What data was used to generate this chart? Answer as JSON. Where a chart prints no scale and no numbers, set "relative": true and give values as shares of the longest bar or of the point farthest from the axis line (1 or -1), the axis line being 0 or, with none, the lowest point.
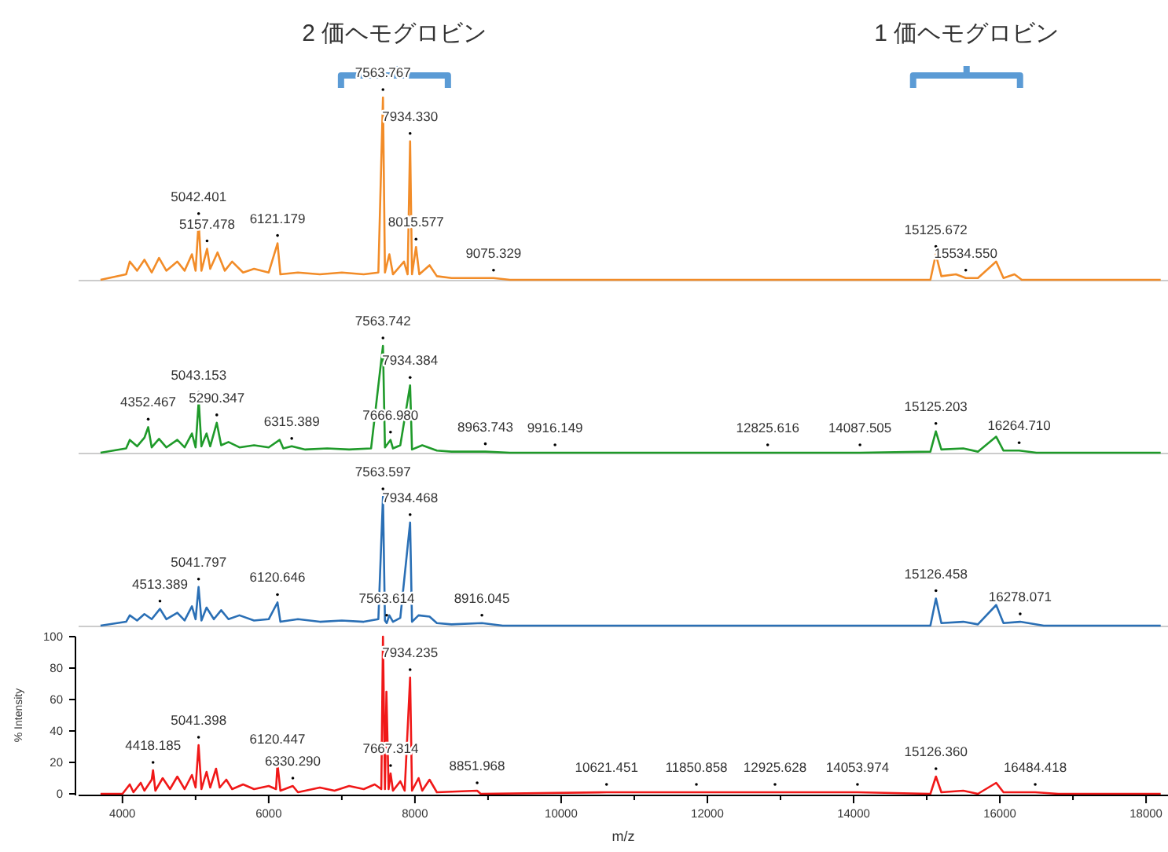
{
  "chart_data": [
    {
      "type": "line",
      "relative": true,
      "tick_labels": false,
      "xlim": [
        3400,
        18300
      ],
      "series": [
        {
          "color": "#f28c28",
          "x": [
            3700,
            4050,
            4100,
            4200,
            4300,
            4400,
            4500,
            4600,
            4750,
            4850,
            4950,
            5000,
            5042,
            5080,
            5157,
            5200,
            5300,
            5400,
            5500,
            5650,
            5800,
            6000,
            6121,
            6160,
            6400,
            6700,
            7000,
            7300,
            7500,
            7563,
            7590,
            7650,
            7700,
            7850,
            7900,
            7934,
            7960,
            8015,
            8060,
            8200,
            8300,
            8500,
            9075,
            9300,
            15050,
            15125,
            15200,
            15400,
            15534,
            15700,
            15950,
            16050,
            16200,
            16300,
            18200
          ],
          "values": [
            0,
            0.03,
            0.1,
            0.05,
            0.11,
            0.04,
            0.12,
            0.05,
            0.1,
            0.05,
            0.14,
            0.05,
            0.32,
            0.05,
            0.17,
            0.06,
            0.15,
            0.05,
            0.1,
            0.04,
            0.06,
            0.04,
            0.2,
            0.03,
            0.04,
            0.03,
            0.04,
            0.03,
            0.04,
            1,
            0.04,
            0.14,
            0.03,
            0.1,
            0.03,
            0.76,
            0.03,
            0.18,
            0.03,
            0.08,
            0.02,
            0.01,
            0.01,
            0,
            0,
            0.14,
            0.02,
            0.03,
            0.01,
            0.01,
            0.1,
            0.01,
            0.03,
            0,
            0
          ]
        }
      ],
      "annotations": [
        {
          "text": "2 価ヘモグロビン",
          "x": 7720
        },
        {
          "text": "1 価ヘモグロビン",
          "x": 15545
        },
        {
          "text": "7563.767",
          "x": 7563,
          "y": 1
        },
        {
          "text": "7934.330",
          "x": 7934,
          "y": 0.76
        },
        {
          "text": "5042.401",
          "x": 5042,
          "y": 0.32
        },
        {
          "text": "5157.478",
          "x": 5157,
          "y": 0.17
        },
        {
          "text": "6121.179",
          "x": 6121,
          "y": 0.2
        },
        {
          "text": "8015.577",
          "x": 8015,
          "y": 0.18
        },
        {
          "text": "9075.329",
          "x": 9075,
          "y": 0.01
        },
        {
          "text": "15125.672",
          "x": 15125,
          "y": 0.14
        },
        {
          "text": "15534.550",
          "x": 15534,
          "y": 0.01
        }
      ]
    },
    {
      "type": "line",
      "relative": true,
      "tick_labels": false,
      "xlim": [
        3400,
        18300
      ],
      "series": [
        {
          "color": "#1f9a2a",
          "x": [
            3700,
            4050,
            4100,
            4200,
            4300,
            4352,
            4400,
            4500,
            4600,
            4750,
            4850,
            4950,
            5000,
            5043,
            5080,
            5150,
            5200,
            5290,
            5350,
            5450,
            5600,
            5800,
            6000,
            6150,
            6200,
            6315,
            6500,
            6800,
            7100,
            7400,
            7563,
            7590,
            7666,
            7700,
            7800,
            7934,
            7960,
            8100,
            8300,
            8500,
            8963,
            9300,
            9916,
            12825,
            14087,
            15050,
            15125,
            15200,
            15500,
            15700,
            15950,
            16050,
            16264,
            16500,
            18200
          ],
          "values": [
            0,
            0.04,
            0.12,
            0.06,
            0.14,
            0.24,
            0.05,
            0.13,
            0.05,
            0.12,
            0.05,
            0.18,
            0.05,
            0.49,
            0.06,
            0.18,
            0.06,
            0.28,
            0.07,
            0.1,
            0.05,
            0.07,
            0.05,
            0.12,
            0.04,
            0.06,
            0.03,
            0.04,
            0.03,
            0.04,
            1,
            0.05,
            0.12,
            0.04,
            0.07,
            0.63,
            0.03,
            0.07,
            0.02,
            0.01,
            0.01,
            0,
            0,
            0,
            0,
            0.01,
            0.2,
            0.03,
            0.04,
            0.01,
            0.15,
            0.02,
            0.02,
            0,
            0
          ]
        }
      ],
      "annotations": [
        {
          "text": "7563.742",
          "x": 7563,
          "y": 1
        },
        {
          "text": "7934.384",
          "x": 7934,
          "y": 0.63
        },
        {
          "text": "5043.153",
          "x": 5043,
          "y": 0.49
        },
        {
          "text": "5290.347",
          "x": 5290,
          "y": 0.28
        },
        {
          "text": "4352.467",
          "x": 4352,
          "y": 0.24
        },
        {
          "text": "6315.389",
          "x": 6315,
          "y": 0.06
        },
        {
          "text": "7666.980",
          "x": 7666,
          "y": 0.12
        },
        {
          "text": "8963.743",
          "x": 8963,
          "y": 0.01
        },
        {
          "text": "9916.149",
          "x": 9916,
          "y": 0
        },
        {
          "text": "12825.616",
          "x": 12825,
          "y": 0
        },
        {
          "text": "14087.505",
          "x": 14087,
          "y": 0
        },
        {
          "text": "15125.203",
          "x": 15125,
          "y": 0.2
        },
        {
          "text": "16264.710",
          "x": 16264,
          "y": 0.02
        }
      ]
    },
    {
      "type": "line",
      "relative": true,
      "tick_labels": false,
      "xlim": [
        3400,
        18300
      ],
      "series": [
        {
          "color": "#2a6fb5",
          "x": [
            3700,
            4050,
            4100,
            4200,
            4300,
            4400,
            4513,
            4600,
            4750,
            4850,
            4950,
            5000,
            5041,
            5080,
            5150,
            5250,
            5350,
            5450,
            5600,
            5800,
            6000,
            6120,
            6160,
            6400,
            6700,
            7000,
            7300,
            7500,
            7563,
            7590,
            7614,
            7650,
            7700,
            7800,
            7934,
            7960,
            8050,
            8200,
            8300,
            8500,
            8916,
            9200,
            15050,
            15126,
            15200,
            15500,
            15700,
            15950,
            16050,
            16278,
            16600,
            18200
          ],
          "values": [
            0,
            0.03,
            0.08,
            0.04,
            0.09,
            0.05,
            0.13,
            0.05,
            0.1,
            0.04,
            0.15,
            0.05,
            0.3,
            0.04,
            0.14,
            0.05,
            0.12,
            0.05,
            0.08,
            0.04,
            0.05,
            0.18,
            0.03,
            0.05,
            0.03,
            0.04,
            0.03,
            0.05,
            1,
            0.04,
            0.02,
            0.08,
            0.03,
            0.06,
            0.8,
            0.03,
            0.08,
            0.07,
            0.02,
            0.01,
            0.02,
            0,
            0,
            0.21,
            0.02,
            0.03,
            0.01,
            0.16,
            0.02,
            0.03,
            0,
            0
          ]
        }
      ],
      "annotations": [
        {
          "text": "7563.597",
          "x": 7563,
          "y": 1
        },
        {
          "text": "7934.468",
          "x": 7934,
          "y": 0.8
        },
        {
          "text": "5041.797",
          "x": 5041,
          "y": 0.3
        },
        {
          "text": "4513.389",
          "x": 4513,
          "y": 0.13
        },
        {
          "text": "6120.646",
          "x": 6120,
          "y": 0.18
        },
        {
          "text": "7563.614",
          "x": 7614,
          "y": 0.02
        },
        {
          "text": "8916.045",
          "x": 8916,
          "y": 0.02
        },
        {
          "text": "15126.458",
          "x": 15126,
          "y": 0.21
        },
        {
          "text": "16278.071",
          "x": 16278,
          "y": 0.03
        }
      ]
    },
    {
      "type": "line",
      "xlim": [
        3400,
        18300
      ],
      "ylim": [
        0,
        100
      ],
      "yticks": [
        0,
        20,
        40,
        60,
        80,
        100
      ],
      "xticks": [
        4000,
        {
          "value": 5000,
          "label": null
        },
        6000,
        {
          "value": 7000,
          "label": null
        },
        8000,
        {
          "value": 9000,
          "label": null
        },
        10000,
        {
          "value": 11000,
          "label": null
        },
        12000,
        {
          "value": 13000,
          "label": null
        },
        14000,
        {
          "value": 15000,
          "label": null
        },
        16000,
        {
          "value": 17000,
          "label": null
        },
        18000
      ],
      "xlabel": "m/z",
      "ylabel": "% Intensity",
      "series": [
        {
          "color": "#f01818",
          "x": [
            3700,
            4000,
            4100,
            4150,
            4250,
            4300,
            4400,
            4418,
            4450,
            4550,
            4650,
            4750,
            4850,
            4950,
            5000,
            5041,
            5080,
            5150,
            5200,
            5280,
            5330,
            5420,
            5500,
            5650,
            5800,
            6000,
            6100,
            6120,
            6160,
            6330,
            6400,
            6700,
            6900,
            7100,
            7300,
            7450,
            7540,
            7563,
            7590,
            7610,
            7640,
            7667,
            7700,
            7800,
            7860,
            7934,
            7960,
            8050,
            8100,
            8200,
            8300,
            8851,
            8900,
            10621,
            11850,
            12925,
            14053,
            15050,
            15126,
            15200,
            15500,
            15700,
            15950,
            16050,
            16484,
            16800,
            18200
          ],
          "values": [
            0,
            0,
            6,
            1,
            7,
            2,
            9,
            15,
            2,
            10,
            3,
            11,
            3,
            12,
            4,
            31,
            3,
            14,
            4,
            16,
            4,
            9,
            3,
            6,
            3,
            5,
            3,
            19,
            2,
            5,
            1,
            4,
            2,
            5,
            3,
            6,
            3,
            100,
            3,
            65,
            3,
            13,
            2,
            8,
            2,
            74,
            2,
            10,
            2,
            9,
            1,
            2,
            0,
            1,
            1,
            1,
            1,
            0,
            11,
            1,
            2,
            0,
            7,
            1,
            1,
            0,
            0
          ]
        }
      ],
      "annotations": [
        {
          "text": "7934.235",
          "x": 7934,
          "y": 74
        },
        {
          "text": "5041.398",
          "x": 5041,
          "y": 31
        },
        {
          "text": "4418.185",
          "x": 4418,
          "y": 15
        },
        {
          "text": "6120.447",
          "x": 6120,
          "y": 19
        },
        {
          "text": "6330.290",
          "x": 6330,
          "y": 5
        },
        {
          "text": "7667.314",
          "x": 7667,
          "y": 13
        },
        {
          "text": "8851.968",
          "x": 8851,
          "y": 2
        },
        {
          "text": "10621.451",
          "x": 10621,
          "y": 1
        },
        {
          "text": "11850.858",
          "x": 11850,
          "y": 1
        },
        {
          "text": "12925.628",
          "x": 12925,
          "y": 1
        },
        {
          "text": "14053.974",
          "x": 14053,
          "y": 1
        },
        {
          "text": "15126.360",
          "x": 15126,
          "y": 11
        },
        {
          "text": "16484.418",
          "x": 16484,
          "y": 1
        }
      ]
    }
  ]
}
